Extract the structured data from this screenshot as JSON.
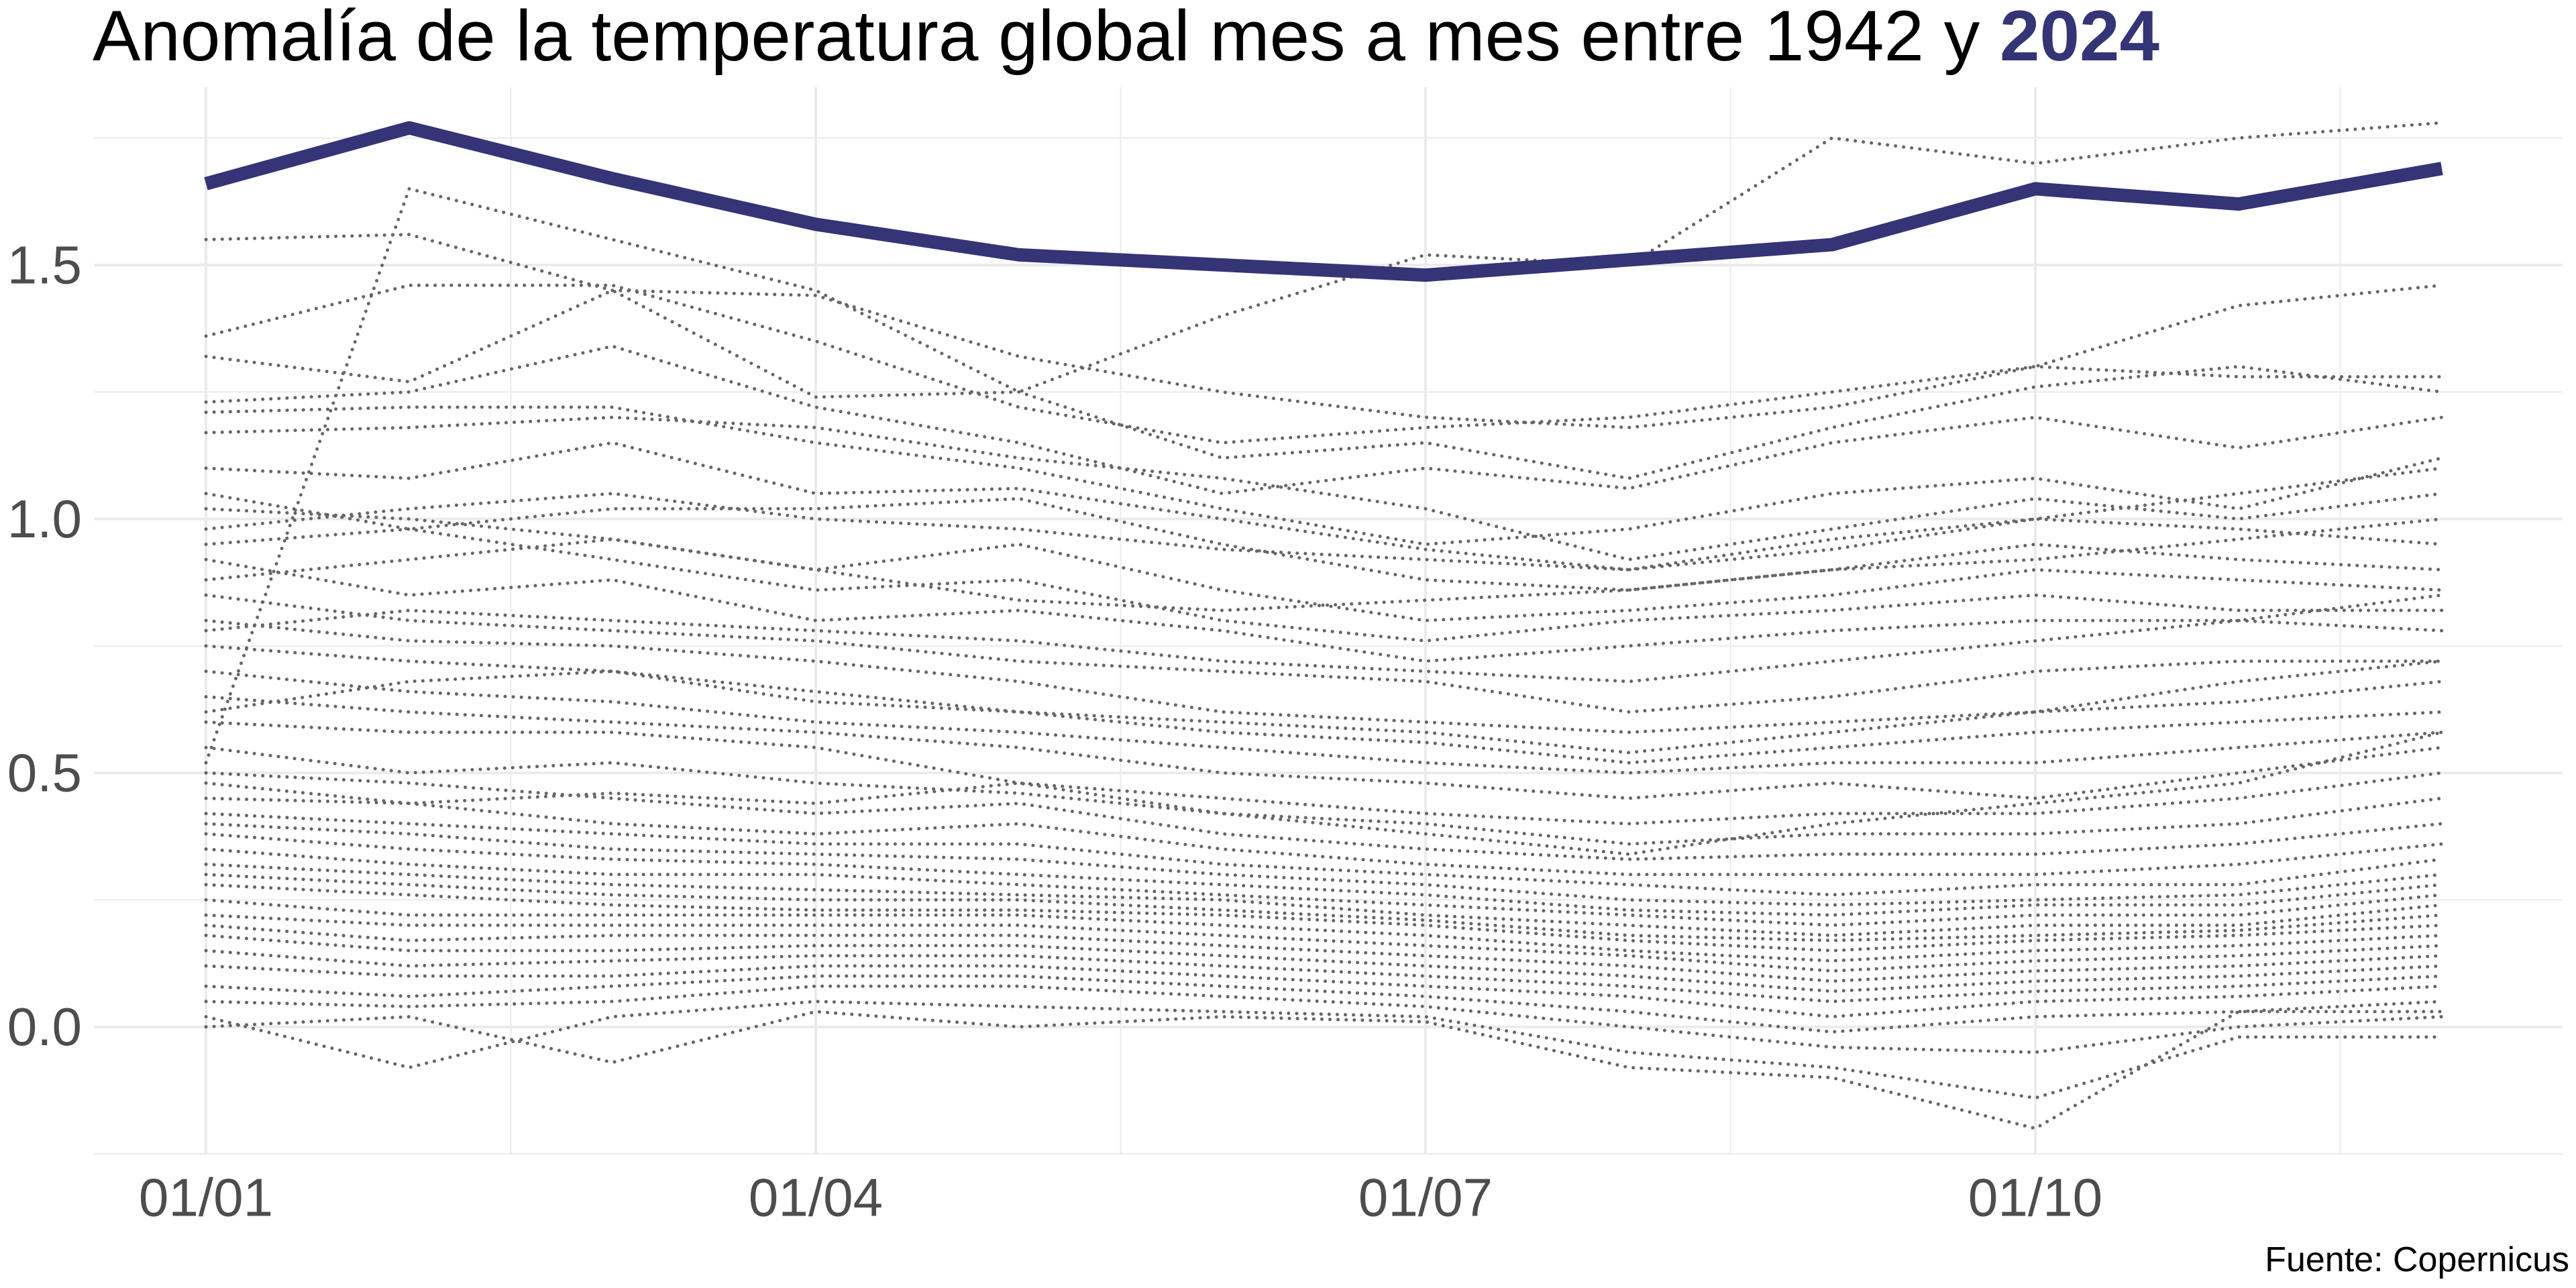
{
  "title": {
    "prefix": "Anomalía de la temperatura global mes a mes entre 1942 y ",
    "highlight": "2024",
    "highlight_color": "#343477"
  },
  "caption": "Fuente: Copernicus",
  "chart_data": {
    "type": "line",
    "x": [
      "01/01",
      "01/02",
      "01/03",
      "01/04",
      "01/05",
      "01/06",
      "01/07",
      "01/08",
      "01/09",
      "01/10",
      "01/11",
      "01/12"
    ],
    "x_tick_labels": [
      "01/01",
      "01/04",
      "01/07",
      "01/10"
    ],
    "y_ticks": [
      0.0,
      0.5,
      1.0,
      1.5
    ],
    "y_tick_labels": [
      "0.0",
      "0.5",
      "1.0",
      "1.5"
    ],
    "ylim": [
      -0.25,
      1.85
    ],
    "grid": true,
    "colors": {
      "highlight": "#343477",
      "background_series": "#666666",
      "grid": "#ebebeb"
    },
    "highlight_series": {
      "name": "2024",
      "values": [
        1.66,
        1.77,
        1.67,
        1.58,
        1.52,
        1.5,
        1.48,
        1.51,
        1.54,
        1.65,
        1.62,
        1.69
      ]
    },
    "background_series": [
      {
        "values": [
          0.52,
          1.65,
          1.55,
          1.45,
          1.25,
          1.4,
          1.52,
          1.5,
          1.75,
          1.7,
          1.75,
          1.78
        ]
      },
      {
        "values": [
          1.55,
          1.56,
          1.45,
          1.44,
          1.32,
          1.25,
          1.2,
          1.18,
          1.22,
          1.3,
          1.42,
          1.46
        ]
      },
      {
        "values": [
          1.36,
          1.46,
          1.46,
          1.35,
          1.22,
          1.15,
          1.18,
          1.2,
          1.25,
          1.3,
          1.28,
          1.28
        ]
      },
      {
        "values": [
          1.32,
          1.27,
          1.45,
          1.24,
          1.25,
          1.12,
          1.15,
          1.08,
          1.18,
          1.26,
          1.3,
          1.25
        ]
      },
      {
        "values": [
          1.23,
          1.25,
          1.34,
          1.22,
          1.15,
          1.05,
          1.1,
          1.06,
          1.15,
          1.2,
          1.14,
          1.2
        ]
      },
      {
        "values": [
          1.21,
          1.22,
          1.22,
          1.15,
          1.1,
          1.02,
          0.95,
          0.98,
          1.05,
          1.08,
          1.02,
          1.12
        ]
      },
      {
        "values": [
          1.17,
          1.18,
          1.2,
          1.18,
          1.12,
          1.08,
          1.02,
          0.92,
          0.98,
          1.04,
          1.0,
          1.05
        ]
      },
      {
        "values": [
          1.1,
          1.08,
          1.15,
          1.05,
          1.06,
          1.0,
          0.94,
          0.9,
          0.96,
          1.0,
          0.98,
          0.95
        ]
      },
      {
        "values": [
          1.05,
          0.98,
          1.02,
          1.02,
          1.04,
          0.95,
          0.88,
          0.86,
          0.9,
          0.95,
          0.92,
          0.9
        ]
      },
      {
        "values": [
          1.02,
          1.0,
          0.96,
          0.9,
          0.95,
          0.86,
          0.8,
          0.82,
          0.85,
          0.9,
          0.88,
          0.86
        ]
      },
      {
        "values": [
          0.95,
          0.98,
          0.92,
          0.86,
          0.88,
          0.8,
          0.76,
          0.8,
          0.82,
          0.85,
          0.82,
          0.82
        ]
      },
      {
        "values": [
          0.92,
          0.85,
          0.88,
          0.8,
          0.82,
          0.78,
          0.72,
          0.75,
          0.78,
          0.8,
          0.8,
          0.78
        ]
      },
      {
        "values": [
          0.85,
          0.8,
          0.78,
          0.76,
          0.72,
          0.7,
          0.68,
          0.62,
          0.65,
          0.7,
          0.72,
          0.72
        ]
      },
      {
        "values": [
          0.8,
          0.76,
          0.75,
          0.72,
          0.68,
          0.62,
          0.6,
          0.58,
          0.6,
          0.62,
          0.64,
          0.68
        ]
      },
      {
        "values": [
          0.75,
          0.72,
          0.7,
          0.64,
          0.62,
          0.58,
          0.56,
          0.52,
          0.55,
          0.58,
          0.6,
          0.62
        ]
      },
      {
        "values": [
          0.7,
          0.66,
          0.64,
          0.6,
          0.58,
          0.55,
          0.52,
          0.5,
          0.52,
          0.52,
          0.55,
          0.58
        ]
      },
      {
        "values": [
          0.65,
          0.62,
          0.6,
          0.58,
          0.55,
          0.5,
          0.48,
          0.45,
          0.48,
          0.45,
          0.5,
          0.55
        ]
      },
      {
        "values": [
          0.6,
          0.58,
          0.58,
          0.55,
          0.48,
          0.45,
          0.42,
          0.4,
          0.42,
          0.42,
          0.45,
          0.5
        ]
      },
      {
        "values": [
          0.55,
          0.5,
          0.52,
          0.48,
          0.46,
          0.42,
          0.4,
          0.36,
          0.38,
          0.38,
          0.4,
          0.45
        ]
      },
      {
        "values": [
          0.5,
          0.48,
          0.45,
          0.42,
          0.44,
          0.38,
          0.35,
          0.33,
          0.34,
          0.34,
          0.36,
          0.4
        ]
      },
      {
        "values": [
          0.45,
          0.44,
          0.4,
          0.38,
          0.4,
          0.35,
          0.32,
          0.3,
          0.3,
          0.3,
          0.32,
          0.36
        ]
      },
      {
        "values": [
          0.42,
          0.4,
          0.38,
          0.36,
          0.36,
          0.32,
          0.3,
          0.28,
          0.26,
          0.28,
          0.28,
          0.33
        ]
      },
      {
        "values": [
          0.4,
          0.38,
          0.35,
          0.34,
          0.33,
          0.3,
          0.28,
          0.25,
          0.24,
          0.25,
          0.26,
          0.3
        ]
      },
      {
        "values": [
          0.38,
          0.35,
          0.33,
          0.32,
          0.3,
          0.28,
          0.26,
          0.23,
          0.22,
          0.24,
          0.24,
          0.28
        ]
      },
      {
        "values": [
          0.35,
          0.32,
          0.3,
          0.3,
          0.28,
          0.26,
          0.24,
          0.22,
          0.2,
          0.22,
          0.22,
          0.26
        ]
      },
      {
        "values": [
          0.32,
          0.3,
          0.28,
          0.27,
          0.26,
          0.25,
          0.22,
          0.2,
          0.18,
          0.2,
          0.2,
          0.24
        ]
      },
      {
        "values": [
          0.3,
          0.28,
          0.26,
          0.25,
          0.25,
          0.23,
          0.21,
          0.18,
          0.17,
          0.18,
          0.19,
          0.22
        ]
      },
      {
        "values": [
          0.28,
          0.26,
          0.24,
          0.23,
          0.23,
          0.22,
          0.2,
          0.17,
          0.15,
          0.17,
          0.18,
          0.2
        ]
      },
      {
        "values": [
          0.25,
          0.22,
          0.22,
          0.22,
          0.22,
          0.2,
          0.18,
          0.15,
          0.13,
          0.15,
          0.16,
          0.18
        ]
      },
      {
        "values": [
          0.22,
          0.2,
          0.2,
          0.2,
          0.2,
          0.18,
          0.16,
          0.14,
          0.11,
          0.13,
          0.14,
          0.16
        ]
      },
      {
        "values": [
          0.2,
          0.17,
          0.18,
          0.18,
          0.18,
          0.16,
          0.14,
          0.12,
          0.09,
          0.11,
          0.12,
          0.14
        ]
      },
      {
        "values": [
          0.18,
          0.15,
          0.15,
          0.16,
          0.16,
          0.14,
          0.12,
          0.1,
          0.07,
          0.09,
          0.1,
          0.12
        ]
      },
      {
        "values": [
          0.15,
          0.12,
          0.13,
          0.14,
          0.14,
          0.12,
          0.1,
          0.08,
          0.05,
          0.07,
          0.08,
          0.1
        ]
      },
      {
        "values": [
          0.12,
          0.1,
          0.1,
          0.12,
          0.12,
          0.1,
          0.08,
          0.06,
          0.02,
          0.05,
          0.06,
          0.08
        ]
      },
      {
        "values": [
          0.08,
          0.06,
          0.08,
          0.1,
          0.1,
          0.08,
          0.06,
          0.03,
          -0.01,
          0.02,
          0.03,
          0.05
        ]
      },
      {
        "values": [
          0.05,
          0.04,
          0.05,
          0.08,
          0.08,
          0.06,
          0.04,
          0.0,
          -0.04,
          -0.05,
          0.0,
          0.02
        ]
      },
      {
        "values": [
          0.02,
          -0.08,
          0.02,
          0.05,
          0.04,
          0.03,
          0.02,
          -0.05,
          -0.08,
          -0.14,
          -0.02,
          -0.02
        ]
      },
      {
        "values": [
          0.0,
          0.02,
          -0.07,
          0.03,
          0.0,
          0.02,
          0.01,
          -0.08,
          -0.1,
          -0.2,
          0.03,
          0.03
        ]
      },
      {
        "values": [
          0.48,
          0.44,
          0.46,
          0.44,
          0.48,
          0.42,
          0.38,
          0.34,
          0.4,
          0.44,
          0.48,
          0.58
        ]
      },
      {
        "values": [
          0.62,
          0.68,
          0.7,
          0.66,
          0.62,
          0.6,
          0.58,
          0.54,
          0.58,
          0.62,
          0.68,
          0.72
        ]
      },
      {
        "values": [
          0.78,
          0.82,
          0.8,
          0.78,
          0.76,
          0.72,
          0.7,
          0.68,
          0.72,
          0.76,
          0.8,
          0.85
        ]
      },
      {
        "values": [
          0.88,
          0.92,
          0.96,
          0.9,
          0.84,
          0.82,
          0.84,
          0.86,
          0.9,
          0.92,
          0.96,
          1.0
        ]
      },
      {
        "values": [
          0.98,
          1.02,
          1.05,
          1.0,
          0.98,
          0.94,
          0.92,
          0.9,
          0.94,
          1.0,
          1.05,
          1.1
        ]
      }
    ]
  }
}
